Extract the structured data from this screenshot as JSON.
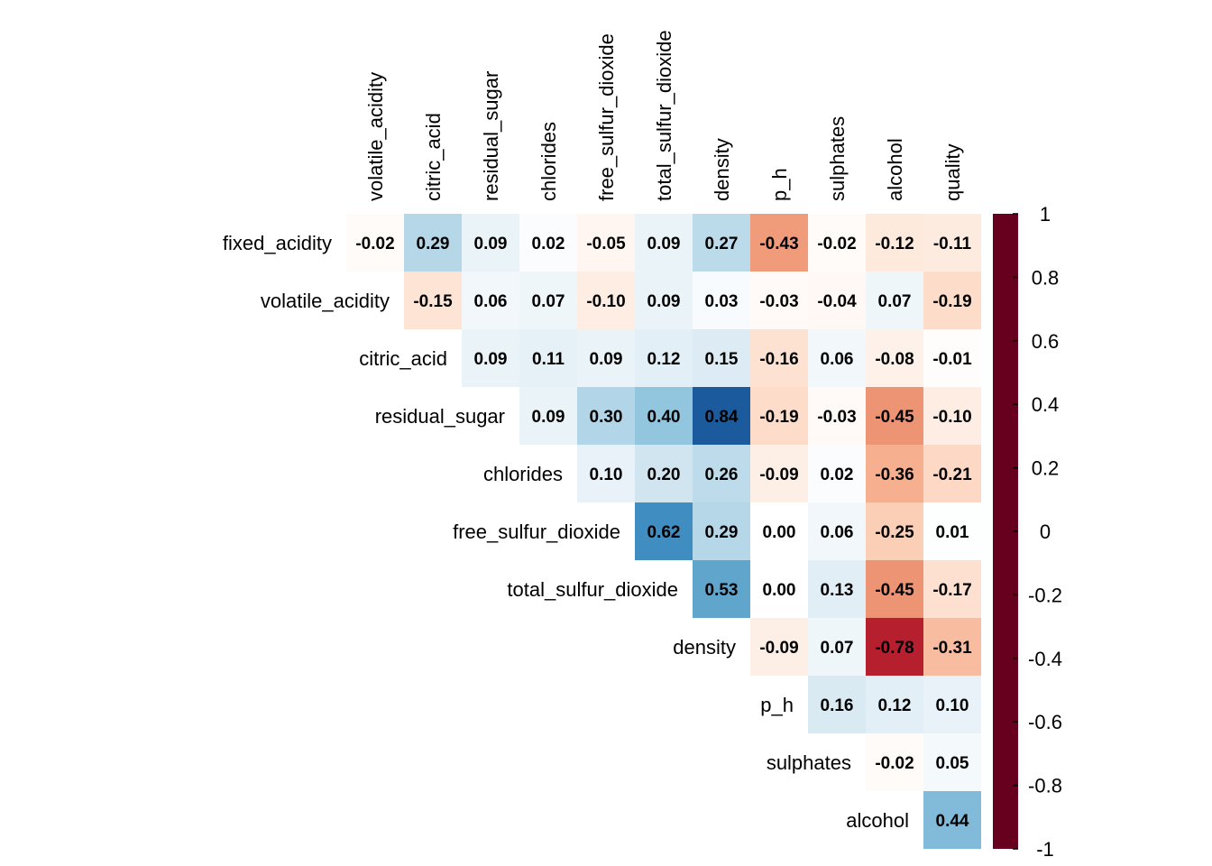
{
  "chart_data": {
    "type": "heatmap",
    "layout": "upper-triangle",
    "title": "",
    "row_labels": [
      "fixed_acidity",
      "volatile_acidity",
      "citric_acid",
      "residual_sugar",
      "chlorides",
      "free_sulfur_dioxide",
      "total_sulfur_dioxide",
      "density",
      "p_h",
      "sulphates",
      "alcohol"
    ],
    "col_labels": [
      "volatile_acidity",
      "citric_acid",
      "residual_sugar",
      "chlorides",
      "free_sulfur_dioxide",
      "total_sulfur_dioxide",
      "density",
      "p_h",
      "sulphates",
      "alcohol",
      "quality"
    ],
    "values": [
      [
        -0.02,
        0.29,
        0.09,
        0.02,
        -0.05,
        0.09,
        0.27,
        -0.43,
        -0.02,
        -0.12,
        -0.11
      ],
      [
        -0.15,
        0.06,
        0.07,
        -0.1,
        0.09,
        0.03,
        -0.03,
        -0.04,
        0.07,
        -0.19
      ],
      [
        0.09,
        0.11,
        0.09,
        0.12,
        0.15,
        -0.16,
        0.06,
        -0.08,
        -0.01
      ],
      [
        0.09,
        0.3,
        0.4,
        0.84,
        -0.19,
        -0.03,
        -0.45,
        -0.1
      ],
      [
        0.1,
        0.2,
        0.26,
        -0.09,
        0.02,
        -0.36,
        -0.21
      ],
      [
        0.62,
        0.29,
        0.0,
        0.06,
        -0.25,
        0.01
      ],
      [
        0.53,
        0.0,
        0.13,
        -0.45,
        -0.17
      ],
      [
        -0.09,
        0.07,
        -0.78,
        -0.31
      ],
      [
        0.16,
        0.12,
        0.1
      ],
      [
        -0.02,
        0.05
      ],
      [
        0.44
      ]
    ],
    "value_format": "2 decimals",
    "color_scale": {
      "min": -1,
      "max": 1,
      "colors": [
        "#67001F",
        "#B2182B",
        "#D6604D",
        "#F4A582",
        "#FDDBC7",
        "#FFFFFF",
        "#D1E5F0",
        "#92C5DE",
        "#4393C3",
        "#2166AC",
        "#053061"
      ],
      "ticks": [
        "1",
        "0.8",
        "0.6",
        "0.4",
        "0.2",
        "0",
        "-0.2",
        "-0.4",
        "-0.6",
        "-0.8",
        "-1"
      ]
    },
    "legend_position": "right"
  }
}
